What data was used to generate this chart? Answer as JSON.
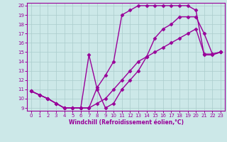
{
  "xlabel": "Windchill (Refroidissement éolien,°C)",
  "bg_color": "#cce8e8",
  "line_color": "#990099",
  "grid_color": "#aacccc",
  "xlim": [
    -0.5,
    23.5
  ],
  "ylim": [
    8.7,
    20.3
  ],
  "xticks": [
    0,
    1,
    2,
    3,
    4,
    5,
    6,
    7,
    8,
    9,
    10,
    11,
    12,
    13,
    14,
    15,
    16,
    17,
    18,
    19,
    20,
    21,
    22,
    23
  ],
  "yticks": [
    9,
    10,
    11,
    12,
    13,
    14,
    15,
    16,
    17,
    18,
    19,
    20
  ],
  "line1_x": [
    0,
    1,
    2,
    3,
    4,
    5,
    6,
    7,
    8,
    9,
    10,
    11,
    12,
    13,
    14,
    15,
    16,
    17,
    18,
    19,
    20,
    21,
    22,
    23
  ],
  "line1_y": [
    10.8,
    10.4,
    10.0,
    9.5,
    9.0,
    9.0,
    9.0,
    9.0,
    9.5,
    10.0,
    11.0,
    12.0,
    13.0,
    14.0,
    14.5,
    15.0,
    15.5,
    16.0,
    16.5,
    17.0,
    17.5,
    14.8,
    14.8,
    15.0
  ],
  "line2_x": [
    0,
    1,
    2,
    3,
    4,
    5,
    6,
    7,
    8,
    9,
    10,
    11,
    12,
    13,
    14,
    15,
    16,
    17,
    18,
    19,
    20,
    21,
    22,
    23
  ],
  "line2_y": [
    10.8,
    10.4,
    10.0,
    9.5,
    9.0,
    9.0,
    9.0,
    9.0,
    11.2,
    12.5,
    14.0,
    19.0,
    19.5,
    20.0,
    20.0,
    20.0,
    20.0,
    20.0,
    20.0,
    20.0,
    19.5,
    14.7,
    14.7,
    15.0
  ],
  "line3_x": [
    0,
    1,
    2,
    3,
    4,
    5,
    6,
    7,
    8,
    9,
    10,
    11,
    12,
    13,
    14,
    15,
    16,
    17,
    18,
    19,
    20,
    21,
    22,
    23
  ],
  "line3_y": [
    10.8,
    10.4,
    10.0,
    9.5,
    9.0,
    9.0,
    9.0,
    14.7,
    11.0,
    9.0,
    9.5,
    11.0,
    12.0,
    13.0,
    14.5,
    16.5,
    17.5,
    18.0,
    18.8,
    18.8,
    18.8,
    17.0,
    14.8,
    15.0
  ],
  "marker": "D",
  "markersize": 2.5,
  "linewidth": 1.0
}
